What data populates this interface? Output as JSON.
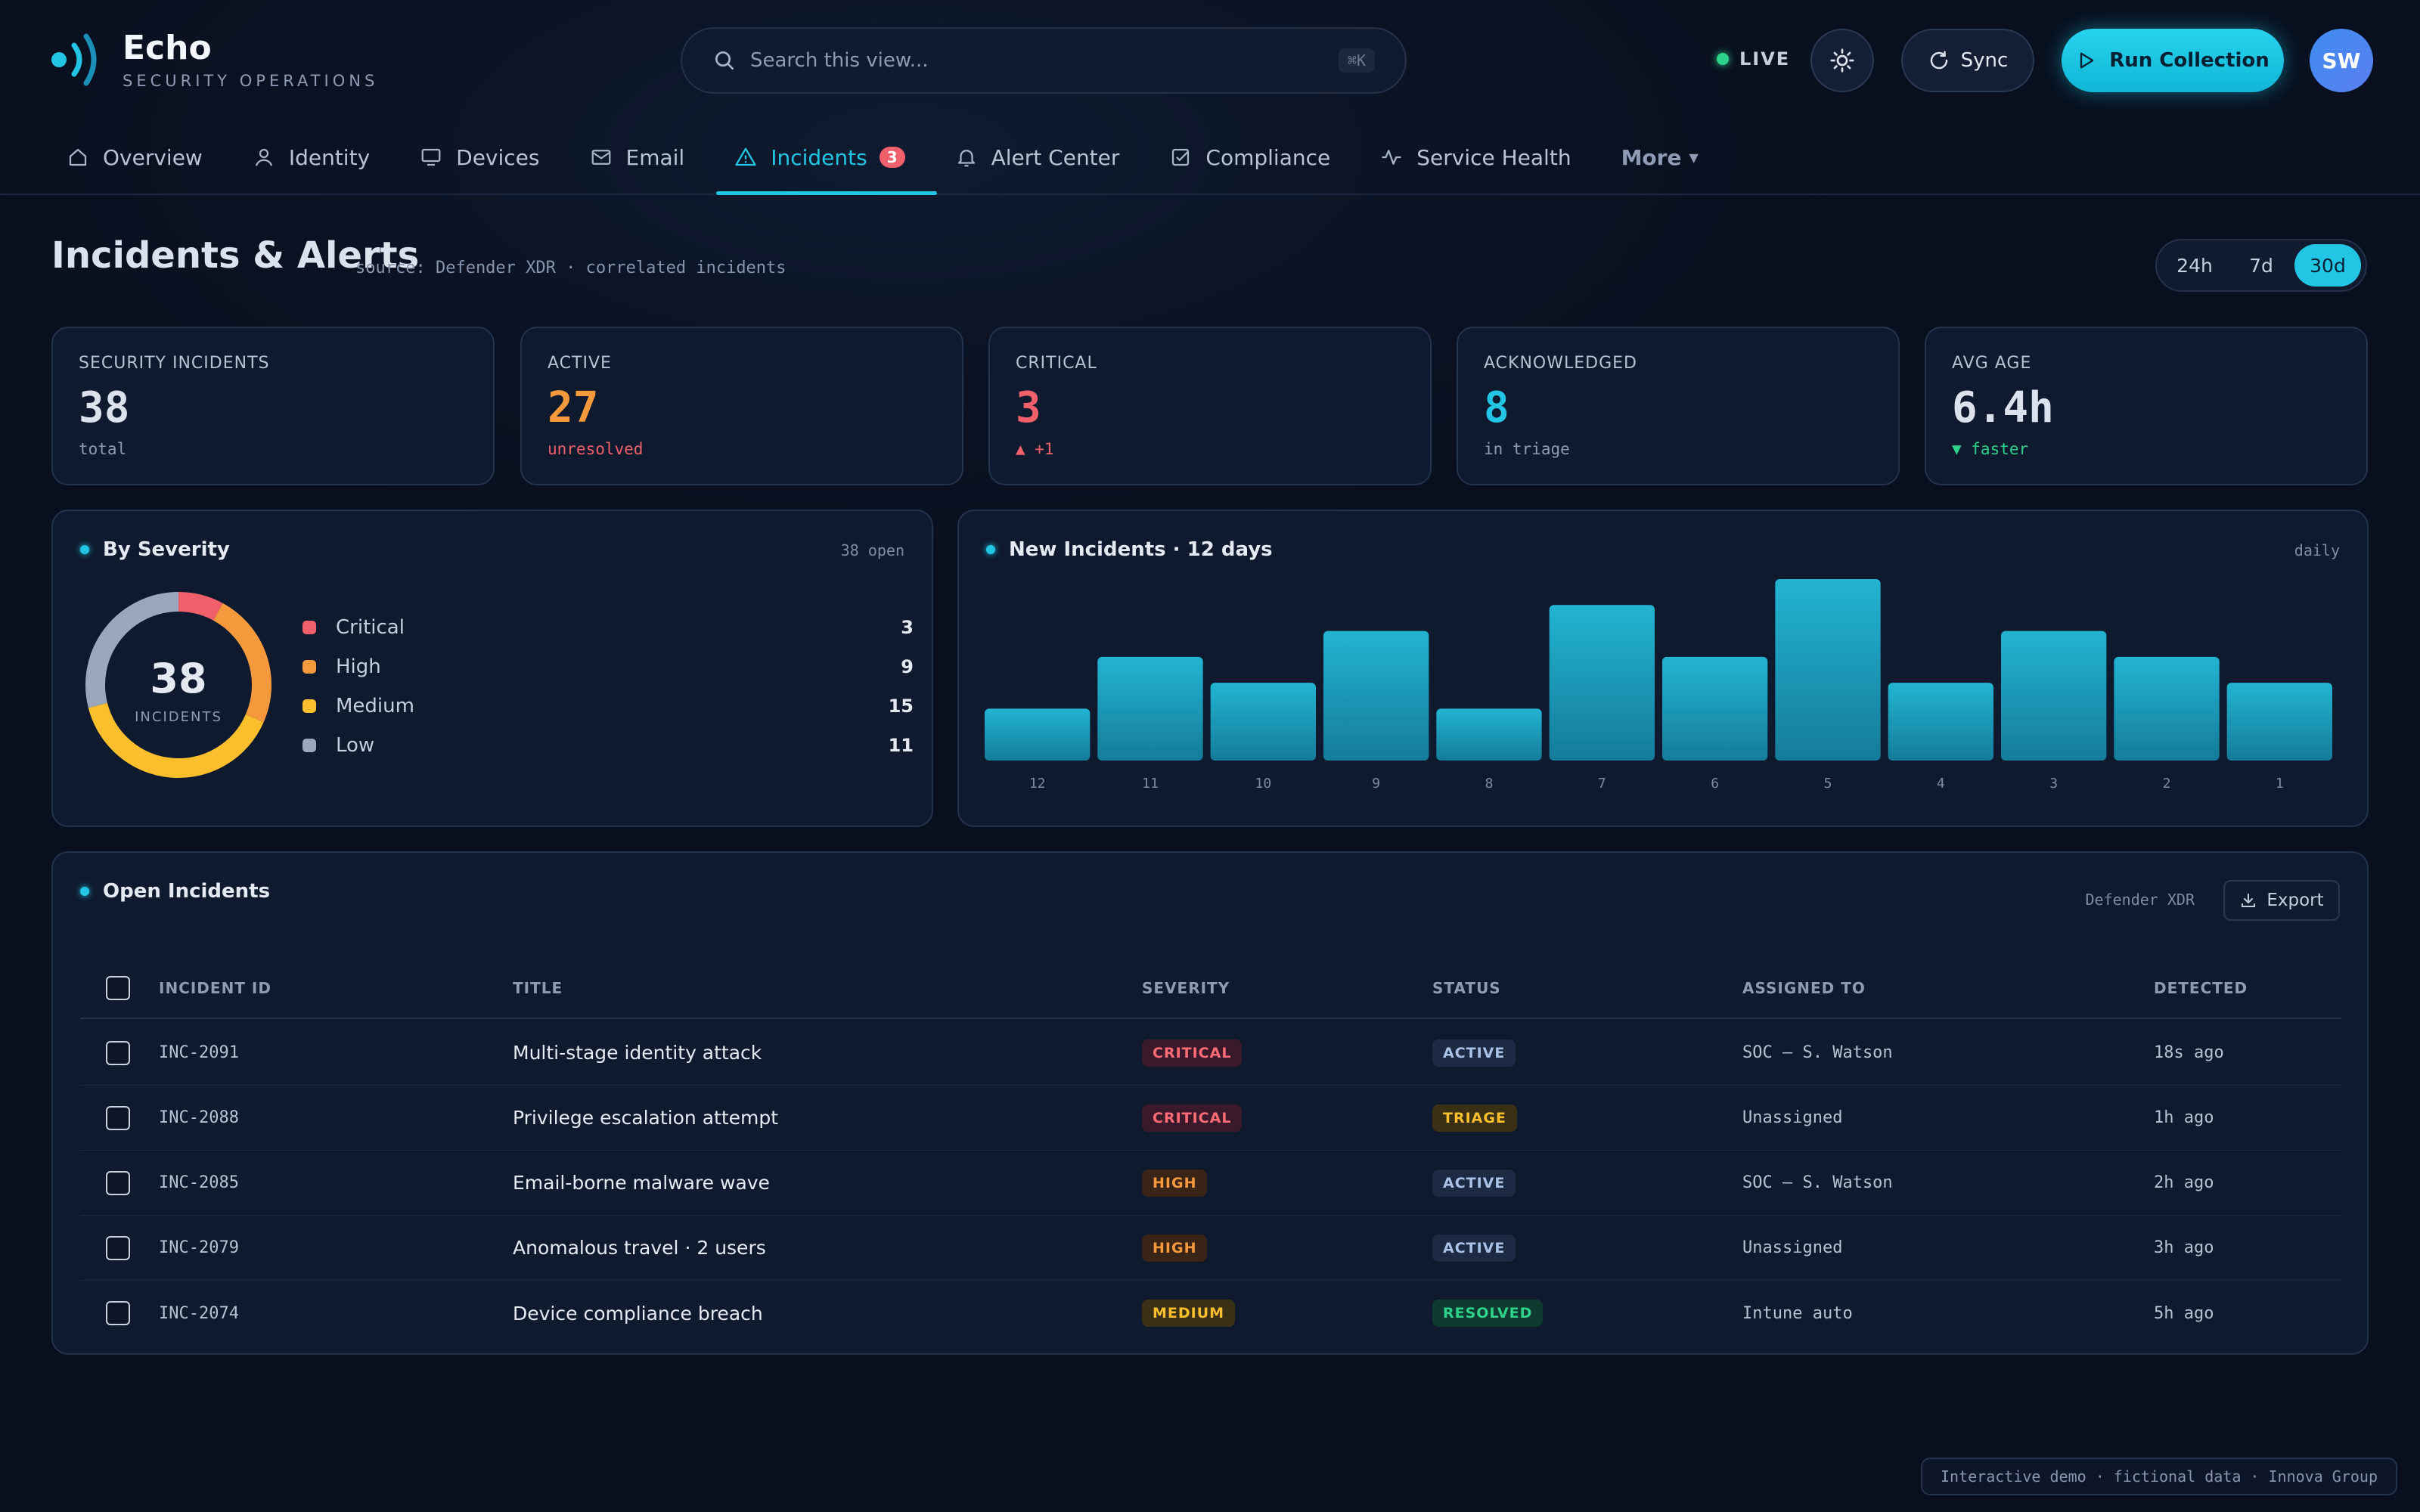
{
  "app": {
    "name": "Echo",
    "subtitle": "SECURITY OPERATIONS"
  },
  "search": {
    "placeholder": "Search this view...",
    "shortcut": "⌘K"
  },
  "header": {
    "live_label": "LIVE",
    "sync_label": "Sync",
    "run_label": "Run Collection",
    "avatar_initials": "SW"
  },
  "nav": {
    "tabs": [
      {
        "label": "Overview",
        "icon": "home-icon"
      },
      {
        "label": "Identity",
        "icon": "user-icon"
      },
      {
        "label": "Devices",
        "icon": "monitor-icon"
      },
      {
        "label": "Email",
        "icon": "mail-icon"
      },
      {
        "label": "Incidents",
        "icon": "alert-triangle-icon",
        "badge": "3",
        "active": true
      },
      {
        "label": "Alert Center",
        "icon": "bell-icon"
      },
      {
        "label": "Compliance",
        "icon": "check-square-icon"
      },
      {
        "label": "Service Health",
        "icon": "activity-icon"
      }
    ],
    "more_label": "More"
  },
  "page": {
    "title": "Incidents & Alerts",
    "source": "source: Defender XDR · correlated incidents",
    "ranges": [
      "24h",
      "7d",
      "30d"
    ],
    "selected_range": "30d"
  },
  "kpis": [
    {
      "label": "SECURITY INCIDENTS",
      "value": "38",
      "note": "total",
      "value_color": "#dbe2ee",
      "note_color": "#8e9bb3"
    },
    {
      "label": "ACTIVE",
      "value": "27",
      "note": "unresolved",
      "value_color": "#f59a3c",
      "note_color": "#f0606a"
    },
    {
      "label": "CRITICAL",
      "value": "3",
      "note": "▲ +1",
      "value_color": "#f0606a",
      "note_color": "#f0606a"
    },
    {
      "label": "ACKNOWLEDGED",
      "value": "8",
      "note": "in triage",
      "value_color": "#22c6e4",
      "note_color": "#8e9bb3"
    },
    {
      "label": "AVG AGE",
      "value": "6.4h",
      "note": "▼ faster",
      "value_color": "#dbe2ee",
      "note_color": "#2fd28a"
    }
  ],
  "severity": {
    "title": "By Severity",
    "meta": "38 open",
    "total": "38",
    "total_label": "INCIDENTS",
    "items": [
      {
        "label": "Critical",
        "value": 3,
        "color": "#f0606a"
      },
      {
        "label": "High",
        "value": 9,
        "color": "#f59a3c"
      },
      {
        "label": "Medium",
        "value": 15,
        "color": "#fbbf2d"
      },
      {
        "label": "Low",
        "value": 11,
        "color": "#9aa7bd"
      }
    ]
  },
  "chart_data": {
    "type": "bar",
    "title": "New Incidents · 12 days",
    "subtitle": "daily",
    "categories": [
      "12",
      "11",
      "10",
      "9",
      "8",
      "7",
      "6",
      "5",
      "4",
      "3",
      "2",
      "1"
    ],
    "values": [
      2,
      4,
      3,
      5,
      2,
      6,
      4,
      7,
      3,
      5,
      4,
      3
    ],
    "ylim": [
      0,
      7
    ],
    "bar_color": "#1fa9c6",
    "grid": false
  },
  "incidents": {
    "title": "Open Incidents",
    "meta": "Defender XDR",
    "export_label": "Export",
    "columns": [
      "INCIDENT ID",
      "TITLE",
      "SEVERITY",
      "STATUS",
      "ASSIGNED TO",
      "DETECTED"
    ],
    "rows": [
      {
        "id": "INC-2091",
        "title": "Multi-stage identity attack",
        "severity": "CRITICAL",
        "status": "ACTIVE",
        "assigned": "SOC — S. Watson",
        "detected": "18s ago"
      },
      {
        "id": "INC-2088",
        "title": "Privilege escalation attempt",
        "severity": "CRITICAL",
        "status": "TRIAGE",
        "assigned": "Unassigned",
        "detected": "1h ago"
      },
      {
        "id": "INC-2085",
        "title": "Email-borne malware wave",
        "severity": "HIGH",
        "status": "ACTIVE",
        "assigned": "SOC — S. Watson",
        "detected": "2h ago"
      },
      {
        "id": "INC-2079",
        "title": "Anomalous travel · 2 users",
        "severity": "HIGH",
        "status": "ACTIVE",
        "assigned": "Unassigned",
        "detected": "3h ago"
      },
      {
        "id": "INC-2074",
        "title": "Device compliance breach",
        "severity": "MEDIUM",
        "status": "RESOLVED",
        "assigned": "Intune auto",
        "detected": "5h ago"
      }
    ]
  },
  "pill_colors": {
    "CRITICAL": {
      "bg": "#3a1a2a",
      "fg": "#ff6b76"
    },
    "HIGH": {
      "bg": "#3a2418",
      "fg": "#f59a3c"
    },
    "MEDIUM": {
      "bg": "#3a3016",
      "fg": "#fbbf2d"
    },
    "ACTIVE": {
      "bg": "#1c2a44",
      "fg": "#a9c2e6"
    },
    "TRIAGE": {
      "bg": "#3a3016",
      "fg": "#fbbf2d"
    },
    "RESOLVED": {
      "bg": "#0f3a30",
      "fg": "#2fd28a"
    }
  },
  "footer": {
    "note": "Interactive demo · fictional data · Innova Group"
  }
}
